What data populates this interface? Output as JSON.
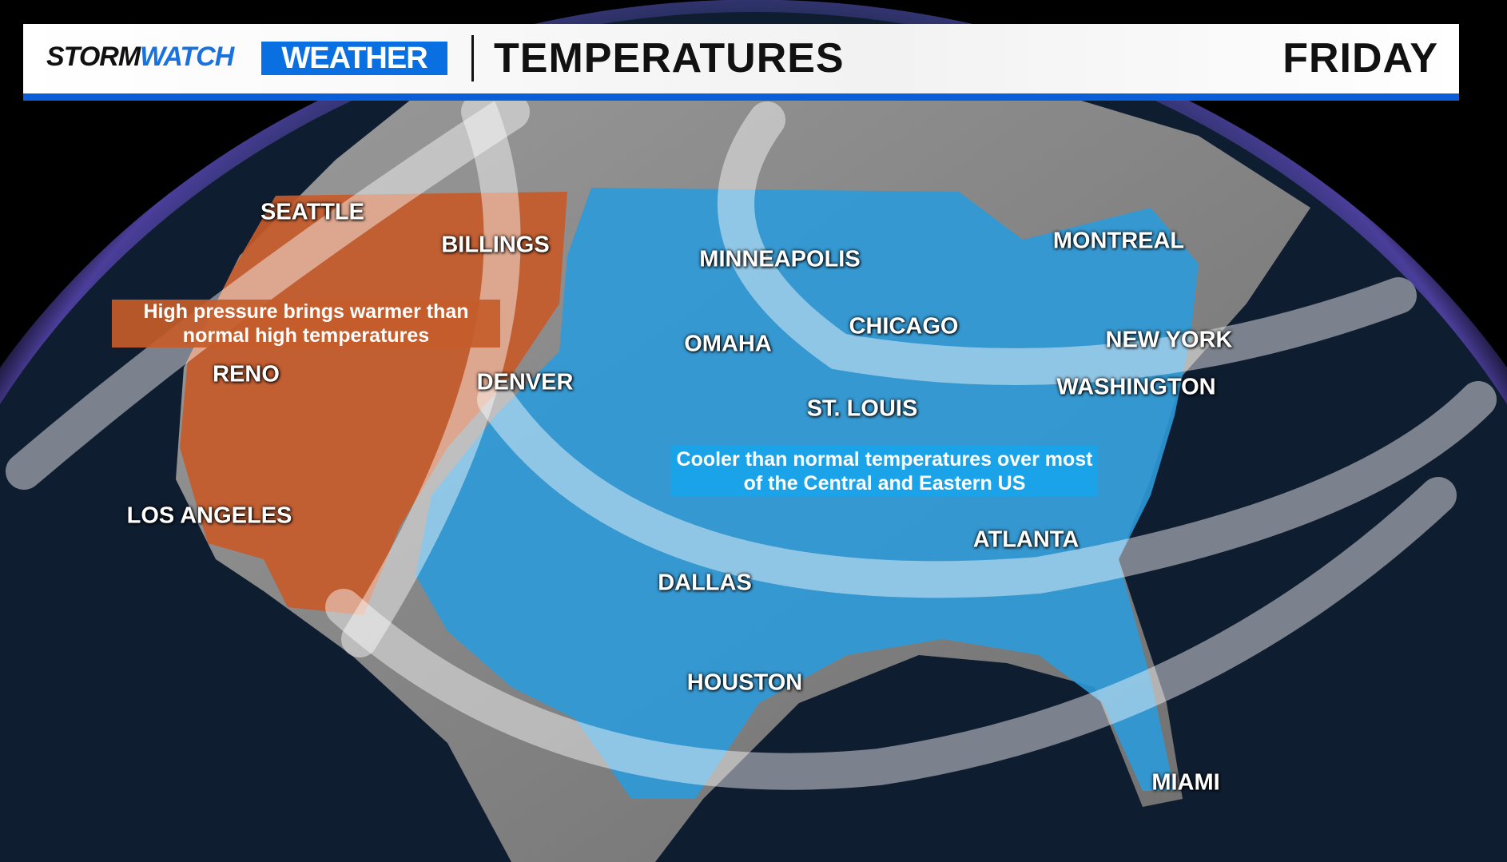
{
  "header": {
    "brand_part1": "STORM",
    "brand_part2": "WATCH",
    "brand_badge": "WEATHER",
    "title": "TEMPERATURES",
    "day": "FRIDAY"
  },
  "colors": {
    "accent_blue": "#0a5fd8",
    "warm_region": "#c65a2a",
    "cool_region": "#2d9ad8",
    "ocean": "#0d1a2b"
  },
  "cities": [
    {
      "name": "SEATTLE"
    },
    {
      "name": "BILLINGS"
    },
    {
      "name": "MINNEAPOLIS"
    },
    {
      "name": "MONTREAL"
    },
    {
      "name": "CHICAGO"
    },
    {
      "name": "OMAHA"
    },
    {
      "name": "NEW YORK"
    },
    {
      "name": "RENO"
    },
    {
      "name": "DENVER"
    },
    {
      "name": "WASHINGTON"
    },
    {
      "name": "ST. LOUIS"
    },
    {
      "name": "LOS ANGELES"
    },
    {
      "name": "ATLANTA"
    },
    {
      "name": "DALLAS"
    },
    {
      "name": "HOUSTON"
    },
    {
      "name": "MIAMI"
    }
  ],
  "notes": {
    "warm": "High pressure brings warmer than normal high temperatures",
    "cool": "Cooler than normal temperatures over most of the Central and Eastern US"
  }
}
